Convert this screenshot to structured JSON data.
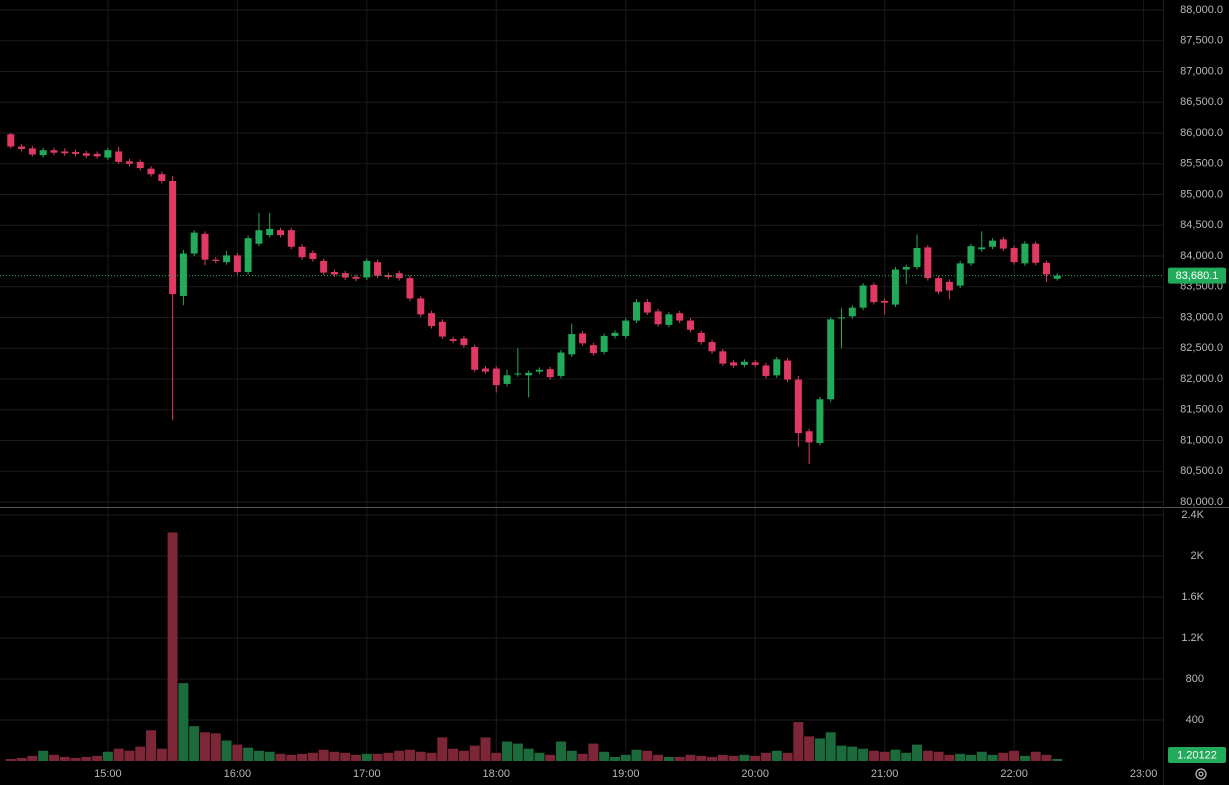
{
  "chart_data": {
    "type": "candlestick",
    "x": [
      855,
      860,
      865,
      870,
      875,
      880,
      885,
      890,
      895,
      900,
      905,
      910,
      915,
      920,
      925,
      930,
      935,
      940,
      945,
      950,
      955,
      960,
      965,
      970,
      975,
      980,
      985,
      990,
      995,
      1000,
      1005,
      1010,
      1015,
      1020,
      1025,
      1030,
      1035,
      1040,
      1045,
      1050,
      1055,
      1060,
      1065,
      1070,
      1075,
      1080,
      1085,
      1090,
      1095,
      1100,
      1105,
      1110,
      1115,
      1120,
      1125,
      1130,
      1135,
      1140,
      1145,
      1150,
      1155,
      1160,
      1165,
      1170,
      1175,
      1180,
      1185,
      1190,
      1195,
      1200,
      1205,
      1210,
      1215,
      1220,
      1225,
      1230,
      1235,
      1240,
      1245,
      1250,
      1255,
      1260,
      1265,
      1270,
      1275,
      1280,
      1285,
      1290,
      1295,
      1300,
      1305,
      1310,
      1315,
      1320,
      1325,
      1330,
      1335,
      1340
    ],
    "open": [
      85980,
      85780,
      85750,
      85640,
      85720,
      85700,
      85690,
      85670,
      85660,
      85600,
      85700,
      85540,
      85530,
      85420,
      85330,
      85220,
      83350,
      84040,
      84360,
      83940,
      83900,
      84010,
      83740,
      84200,
      84340,
      84420,
      84420,
      84150,
      84050,
      83920,
      83740,
      83720,
      83660,
      83650,
      83900,
      83690,
      83720,
      83640,
      83310,
      83070,
      82930,
      82650,
      82660,
      82520,
      82170,
      82170,
      81920,
      82080,
      82060,
      82120,
      82160,
      82050,
      82400,
      82740,
      82550,
      82440,
      82700,
      82700,
      82950,
      83250,
      83100,
      82880,
      83070,
      82950,
      82750,
      82600,
      82450,
      82270,
      82230,
      82270,
      82220,
      82060,
      82300,
      81990,
      81150,
      80960,
      81670,
      82990,
      83020,
      83160,
      83530,
      83270,
      83210,
      83780,
      83820,
      84140,
      83640,
      83580,
      83520,
      83880,
      84110,
      84150,
      84270,
      84130,
      83880,
      84200,
      83890,
      83630
    ],
    "high": [
      86000,
      85820,
      85790,
      85760,
      85760,
      85750,
      85730,
      85710,
      85700,
      85760,
      85780,
      85580,
      85570,
      85460,
      85370,
      85300,
      84100,
      84420,
      84400,
      83980,
      84080,
      84050,
      84330,
      84700,
      84700,
      84460,
      84460,
      84190,
      84090,
      83960,
      83780,
      83760,
      83700,
      83960,
      83940,
      83730,
      83760,
      83680,
      83350,
      83110,
      82970,
      82690,
      82700,
      82560,
      82210,
      82210,
      82150,
      82500,
      82140,
      82190,
      82200,
      82470,
      82900,
      82780,
      82590,
      82740,
      82790,
      82990,
      83300,
      83300,
      83140,
      83090,
      83110,
      82990,
      82790,
      82640,
      82490,
      82310,
      82320,
      82310,
      82260,
      82360,
      82340,
      82050,
      81190,
      81710,
      83000,
      83150,
      83200,
      83560,
      83570,
      83310,
      83820,
      83860,
      84350,
      84180,
      83680,
      83620,
      83920,
      84200,
      84400,
      84290,
      84310,
      84170,
      84240,
      84240,
      83930,
      83720
    ],
    "low": [
      85750,
      85700,
      85620,
      85600,
      85640,
      85630,
      85620,
      85590,
      85580,
      85560,
      85500,
      85460,
      85390,
      85290,
      85180,
      81330,
      83200,
      84000,
      83850,
      83880,
      83860,
      83700,
      83700,
      84160,
      84300,
      84300,
      84110,
      83940,
      83910,
      83690,
      83660,
      83610,
      83590,
      83610,
      83640,
      83620,
      83600,
      83270,
      83010,
      82820,
      82650,
      82580,
      82510,
      82110,
      82080,
      81780,
      81880,
      82040,
      81700,
      82080,
      81990,
      82010,
      82360,
      82540,
      82380,
      82400,
      82660,
      82660,
      82910,
      83040,
      82850,
      82840,
      82910,
      82760,
      82560,
      82410,
      82210,
      82180,
      82190,
      82190,
      82010,
      82020,
      81950,
      80900,
      80620,
      80920,
      81630,
      82500,
      82980,
      83120,
      83210,
      83050,
      83170,
      83540,
      83780,
      83600,
      83380,
      83300,
      83480,
      83840,
      84070,
      84110,
      84080,
      83860,
      83840,
      83850,
      83580,
      83600
    ],
    "close": [
      85780,
      85740,
      85650,
      85720,
      85680,
      85670,
      85660,
      85630,
      85620,
      85720,
      85530,
      85500,
      85430,
      85330,
      85220,
      83380,
      84040,
      84380,
      83940,
      83920,
      84010,
      83740,
      84290,
      84420,
      84440,
      84340,
      84150,
      83980,
      83950,
      83730,
      83700,
      83650,
      83630,
      83920,
      83680,
      83660,
      83640,
      83310,
      83050,
      82860,
      82690,
      82620,
      82550,
      82150,
      82120,
      81900,
      82060,
      82090,
      82100,
      82150,
      82030,
      82430,
      82730,
      82580,
      82420,
      82700,
      82750,
      82950,
      83250,
      83080,
      82890,
      83050,
      82950,
      82800,
      82600,
      82450,
      82250,
      82220,
      82280,
      82230,
      82050,
      82320,
      81990,
      81120,
      80970,
      81670,
      82970,
      83000,
      83160,
      83520,
      83250,
      83240,
      83780,
      83820,
      84130,
      83640,
      83420,
      83440,
      83880,
      84160,
      84140,
      84250,
      84120,
      83900,
      84200,
      83890,
      83700,
      83680
    ],
    "volume": [
      20,
      30,
      50,
      100,
      60,
      40,
      30,
      40,
      50,
      90,
      120,
      100,
      140,
      300,
      120,
      2230,
      760,
      340,
      280,
      270,
      200,
      160,
      130,
      100,
      90,
      70,
      60,
      70,
      80,
      110,
      90,
      80,
      60,
      70,
      70,
      80,
      100,
      110,
      90,
      80,
      230,
      120,
      100,
      150,
      230,
      80,
      190,
      170,
      120,
      80,
      60,
      190,
      100,
      70,
      170,
      90,
      40,
      60,
      110,
      100,
      60,
      40,
      40,
      60,
      50,
      40,
      60,
      50,
      60,
      50,
      80,
      100,
      80,
      380,
      240,
      220,
      280,
      150,
      140,
      120,
      100,
      90,
      110,
      80,
      160,
      100,
      90,
      60,
      70,
      60,
      90,
      60,
      80,
      100,
      50,
      90,
      60,
      20
    ],
    "up_color": "#22ab5a",
    "down_color": "#e03a64",
    "up_volume_color": "#1b6b3c",
    "down_volume_color": "#7c2638",
    "xlim": [
      850,
      1389
    ],
    "xticks": [
      {
        "value": 900,
        "label": "15:00"
      },
      {
        "value": 960,
        "label": "16:00"
      },
      {
        "value": 1020,
        "label": "17:00"
      },
      {
        "value": 1080,
        "label": "18:00"
      },
      {
        "value": 1140,
        "label": "19:00"
      },
      {
        "value": 1200,
        "label": "20:00"
      },
      {
        "value": 1260,
        "label": "21:00"
      },
      {
        "value": 1320,
        "label": "22:00"
      },
      {
        "value": 1380,
        "label": "23:00"
      }
    ],
    "ylim": [
      80000,
      88000
    ],
    "yticks": [
      {
        "value": 80000,
        "label": "80,000.0"
      },
      {
        "value": 80500,
        "label": "80,500.0"
      },
      {
        "value": 81000,
        "label": "81,000.0"
      },
      {
        "value": 81500,
        "label": "81,500.0"
      },
      {
        "value": 82000,
        "label": "82,000.0"
      },
      {
        "value": 82500,
        "label": "82,500.0"
      },
      {
        "value": 83000,
        "label": "83,000.0"
      },
      {
        "value": 83500,
        "label": "83,500.0"
      },
      {
        "value": 84000,
        "label": "84,000.0"
      },
      {
        "value": 84500,
        "label": "84,500.0"
      },
      {
        "value": 85000,
        "label": "85,000.0"
      },
      {
        "value": 85500,
        "label": "85,500.0"
      },
      {
        "value": 86000,
        "label": "86,000.0"
      },
      {
        "value": 86500,
        "label": "86,500.0"
      },
      {
        "value": 87000,
        "label": "87,000.0"
      },
      {
        "value": 87500,
        "label": "87,500.0"
      },
      {
        "value": 88000,
        "label": "88,000.0"
      }
    ],
    "volume_ylim": [
      0,
      2400
    ],
    "volume_yticks": [
      400,
      800,
      {
        "value": 1200,
        "label": "1.2K"
      },
      {
        "value": 1600,
        "label": "1.6K"
      },
      {
        "value": 2000,
        "label": "2K"
      },
      {
        "value": 2400,
        "label": "2.4K"
      }
    ],
    "last_price": {
      "value": 83680.1,
      "label": "83,680.1"
    },
    "last_volume": 1.20122,
    "grid": true
  }
}
